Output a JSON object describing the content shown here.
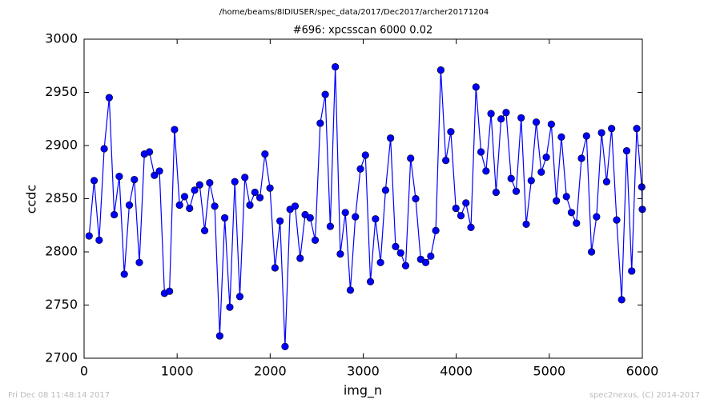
{
  "chart_data": {
    "type": "line",
    "suptitle": "/home/beams/8IDIUSER/spec_data/2017/Dec2017/archer20171204",
    "title": "#696: xpcsscan 6000 0.02",
    "xlabel": "img_n",
    "ylabel": "ccdc",
    "footer_left": "Fri Dec 08 11:48:14 2017",
    "footer_right": "spec2nexus, (C) 2014-2017",
    "x": [
      54,
      108,
      162,
      216,
      270,
      324,
      378,
      432,
      486,
      540,
      594,
      648,
      702,
      756,
      810,
      864,
      918,
      972,
      1026,
      1080,
      1134,
      1188,
      1242,
      1296,
      1350,
      1404,
      1458,
      1512,
      1566,
      1620,
      1674,
      1728,
      1782,
      1836,
      1890,
      1944,
      1998,
      2052,
      2106,
      2160,
      2214,
      2268,
      2322,
      2376,
      2430,
      2484,
      2538,
      2592,
      2646,
      2700,
      2754,
      2808,
      2862,
      2916,
      2970,
      3024,
      3078,
      3132,
      3186,
      3240,
      3294,
      3348,
      3402,
      3456,
      3510,
      3564,
      3618,
      3672,
      3726,
      3780,
      3834,
      3888,
      3942,
      3996,
      4050,
      4104,
      4158,
      4212,
      4266,
      4320,
      4374,
      4428,
      4482,
      4536,
      4590,
      4644,
      4698,
      4752,
      4806,
      4860,
      4914,
      4968,
      5022,
      5076,
      5130,
      5184,
      5238,
      5292,
      5346,
      5400,
      5454,
      5508,
      5562,
      5616,
      5670,
      5724,
      5778,
      5832,
      5886,
      5940,
      5994,
      6000
    ],
    "series": [
      {
        "color": "#0000ff",
        "values": [
          2815,
          2867,
          2811,
          2897,
          2945,
          2835,
          2871,
          2779,
          2844,
          2868,
          2790,
          2892,
          2894,
          2872,
          2876,
          2761,
          2763,
          2915,
          2844,
          2852,
          2841,
          2858,
          2863,
          2820,
          2865,
          2843,
          2721,
          2832,
          2748,
          2866,
          2758,
          2870,
          2844,
          2856,
          2851,
          2892,
          2860,
          2785,
          2829,
          2711,
          2840,
          2843,
          2794,
          2835,
          2832,
          2811,
          2921,
          2948,
          2824,
          2974,
          2798,
          2837,
          2764,
          2833,
          2878,
          2891,
          2772,
          2831,
          2790,
          2858,
          2907,
          2805,
          2799,
          2787,
          2888,
          2850,
          2793,
          2790,
          2796,
          2820,
          2971,
          2886,
          2913,
          2841,
          2834,
          2846,
          2823,
          2955,
          2894,
          2876,
          2930,
          2856,
          2925,
          2931,
          2869,
          2857,
          2926,
          2826,
          2867,
          2922,
          2875,
          2889,
          2920,
          2848,
          2908,
          2852,
          2837,
          2827,
          2888,
          2909,
          2800,
          2833,
          2912,
          2866,
          2916,
          2830,
          2755,
          2895,
          2782,
          2916,
          2861,
          2840
        ]
      }
    ],
    "xlim": [
      0,
      6000
    ],
    "xticks": [
      0,
      1000,
      2000,
      3000,
      4000,
      5000,
      6000
    ],
    "ylim": [
      2700,
      3000
    ],
    "yticks": [
      2700,
      2750,
      2800,
      2850,
      2900,
      2950,
      3000
    ]
  }
}
